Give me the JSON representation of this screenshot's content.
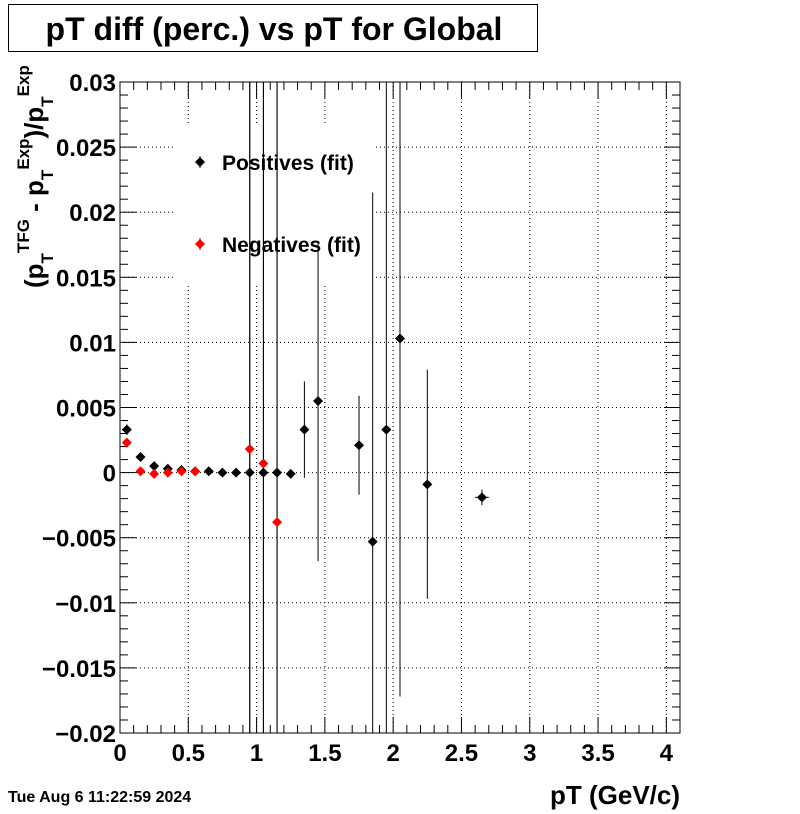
{
  "title": "pT diff (perc.) vs pT for Global",
  "timestamp": "Tue Aug  6 11:22:59 2024",
  "chart_data": {
    "type": "scatter",
    "xlabel": "pT (GeV/c)",
    "ylabel": "(p_T^TFG - p_T^Exp)/p_T^Exp",
    "xlim": [
      0,
      4.1
    ],
    "ylim": [
      -0.02,
      0.03
    ],
    "xticks": [
      0,
      0.5,
      1,
      1.5,
      2,
      2.5,
      3,
      3.5,
      4
    ],
    "xtick_labels": [
      "0",
      "0.5",
      "1",
      "1.5",
      "2",
      "2.5",
      "3",
      "3.5",
      "4"
    ],
    "yticks": [
      -0.02,
      -0.015,
      -0.01,
      -0.005,
      0,
      0.005,
      0.01,
      0.015,
      0.02,
      0.025,
      0.03
    ],
    "ytick_labels": [
      "−0.02",
      "−0.015",
      "−0.01",
      "−0.005",
      "0",
      "0.005",
      "0.01",
      "0.015",
      "0.02",
      "0.025",
      "0.03"
    ],
    "grid": true,
    "legend_position": "top-left",
    "series": [
      {
        "name": "Positives (fit)",
        "color": "#000000",
        "x": [
          0.05,
          0.15,
          0.25,
          0.35,
          0.45,
          0.55,
          0.65,
          0.75,
          0.85,
          0.95,
          1.05,
          1.15,
          1.25,
          1.35,
          1.45,
          1.75,
          1.85,
          1.95,
          2.05,
          2.25,
          2.65
        ],
        "y": [
          0.0033,
          0.0012,
          0.0005,
          0.0003,
          0.0002,
          0.0001,
          0.0001,
          0.0,
          0.0,
          0.0,
          0.0,
          0.0,
          -0.0001,
          0.0033,
          0.0055,
          0.0021,
          -0.0053,
          0.0033,
          0.0103,
          -0.0009,
          -0.0019
        ],
        "err": [
          0.0004,
          0.0003,
          0.0002,
          0.0002,
          0.0002,
          0.0002,
          0.0002,
          0.0002,
          0.0003,
          0.04,
          0.04,
          0.04,
          0.0003,
          0.0037,
          0.0123,
          0.0038,
          0.0268,
          0.04,
          0.0275,
          0.0088,
          0.0006
        ],
        "xerr": [
          0.005,
          0.005,
          0.005,
          0.005,
          0.005,
          0.005,
          0.005,
          0.005,
          0.005,
          0.005,
          0.005,
          0.005,
          0.005,
          0.005,
          0.005,
          0.005,
          0.005,
          0.005,
          0.005,
          0.005,
          0.05
        ]
      },
      {
        "name": "Negatives (fit)",
        "color": "#ff0000",
        "x": [
          0.05,
          0.15,
          0.25,
          0.35,
          0.45,
          0.55,
          0.95,
          1.05,
          1.15
        ],
        "y": [
          0.0023,
          0.0001,
          -0.0001,
          0.0,
          0.0001,
          0.0001,
          0.0018,
          0.0007,
          -0.0038
        ],
        "err": [
          0.0003,
          0.0003,
          0.0002,
          0.0002,
          0.0002,
          0.0002,
          0.04,
          0.04,
          0.04
        ],
        "xerr": [
          0.005,
          0.005,
          0.005,
          0.005,
          0.005,
          0.005,
          0.005,
          0.005,
          0.005
        ]
      }
    ]
  }
}
